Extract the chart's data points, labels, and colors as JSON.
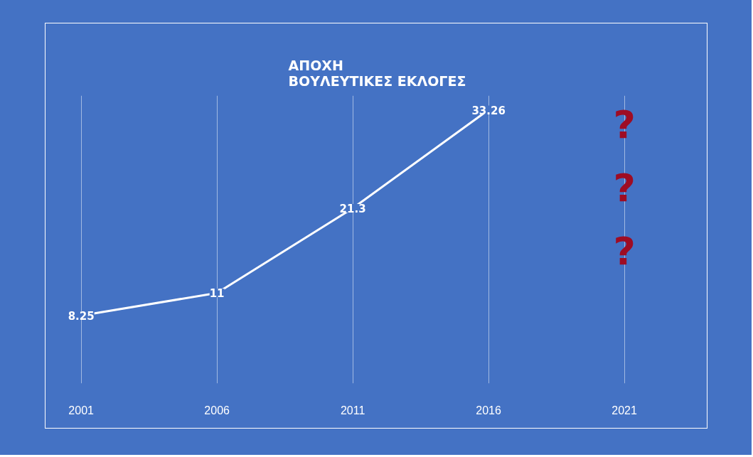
{
  "chart_data": {
    "type": "line",
    "title": "ΑΠΟΧΗ\nΒΟΥΛΕΥΤΙΚΕΣ ΕΚΛΟΓΕΣ",
    "categories": [
      "2001",
      "2006",
      "2011",
      "2016",
      "2021"
    ],
    "series": [
      {
        "color": "#ffffff",
        "values": [
          8.25,
          11,
          21.3,
          33.26,
          null
        ]
      }
    ],
    "data_labels": true,
    "grid": "x",
    "line_style": "solid",
    "annotations": [
      "?",
      "?",
      "?"
    ]
  }
}
